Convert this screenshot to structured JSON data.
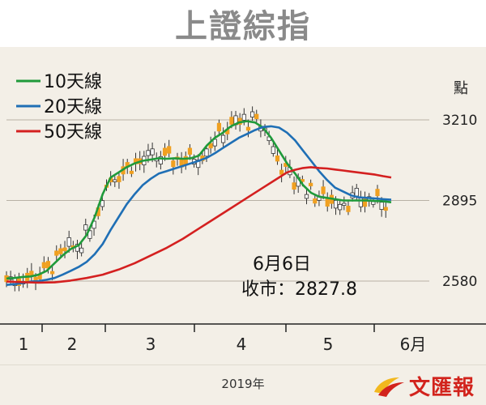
{
  "title": "上證綜指",
  "footer": {
    "year_label": "2019年",
    "brand": "文匯報"
  },
  "colors": {
    "ma10": "#1f9a3a",
    "ma20": "#1f6fb5",
    "ma50": "#d42020",
    "candle_up": "#ffffff",
    "candle_down": "#f0a020",
    "background": "#f3efe7"
  },
  "annotation": {
    "date": "6月6日",
    "close": "收市：2827.8"
  },
  "chart_data": {
    "type": "line",
    "unit_label": "點",
    "ylim": [
      2440,
      3320
    ],
    "y_ticks": [
      {
        "value": 3210,
        "label": "3210"
      },
      {
        "value": 2895,
        "label": "2895"
      },
      {
        "value": 2580,
        "label": "2580"
      }
    ],
    "x_ticks": [
      "1",
      "2",
      "3",
      "4",
      "5",
      "6月"
    ],
    "legend": [
      "10天線",
      "20天線",
      "50天線"
    ],
    "series": [
      {
        "name": "10天線",
        "points": [
          [
            0,
            2590
          ],
          [
            10,
            2592
          ],
          [
            20,
            2596
          ],
          [
            30,
            2598
          ],
          [
            40,
            2605
          ],
          [
            50,
            2620
          ],
          [
            60,
            2650
          ],
          [
            70,
            2680
          ],
          [
            80,
            2705
          ],
          [
            90,
            2720
          ],
          [
            100,
            2760
          ],
          [
            110,
            2830
          ],
          [
            120,
            2920
          ],
          [
            130,
            2985
          ],
          [
            140,
            3005
          ],
          [
            150,
            3025
          ],
          [
            160,
            3040
          ],
          [
            170,
            3050
          ],
          [
            180,
            3055
          ],
          [
            190,
            3060
          ],
          [
            200,
            3058
          ],
          [
            210,
            3060
          ],
          [
            220,
            3058
          ],
          [
            230,
            3060
          ],
          [
            240,
            3070
          ],
          [
            250,
            3110
          ],
          [
            260,
            3140
          ],
          [
            270,
            3160
          ],
          [
            280,
            3185
          ],
          [
            290,
            3200
          ],
          [
            300,
            3205
          ],
          [
            310,
            3200
          ],
          [
            320,
            3180
          ],
          [
            330,
            3140
          ],
          [
            340,
            3090
          ],
          [
            350,
            3040
          ],
          [
            360,
            3000
          ],
          [
            370,
            2955
          ],
          [
            380,
            2925
          ],
          [
            390,
            2910
          ],
          [
            400,
            2905
          ],
          [
            410,
            2900
          ],
          [
            420,
            2895
          ],
          [
            430,
            2895
          ],
          [
            440,
            2895
          ],
          [
            450,
            2895
          ],
          [
            460,
            2893
          ],
          [
            470,
            2892
          ],
          [
            480,
            2888
          ]
        ]
      },
      {
        "name": "20天線",
        "points": [
          [
            0,
            2565
          ],
          [
            10,
            2568
          ],
          [
            20,
            2572
          ],
          [
            30,
            2578
          ],
          [
            40,
            2580
          ],
          [
            50,
            2585
          ],
          [
            60,
            2592
          ],
          [
            70,
            2605
          ],
          [
            80,
            2620
          ],
          [
            90,
            2635
          ],
          [
            100,
            2655
          ],
          [
            110,
            2685
          ],
          [
            120,
            2725
          ],
          [
            130,
            2780
          ],
          [
            140,
            2830
          ],
          [
            150,
            2880
          ],
          [
            160,
            2920
          ],
          [
            170,
            2955
          ],
          [
            180,
            2980
          ],
          [
            190,
            3000
          ],
          [
            200,
            3010
          ],
          [
            210,
            3020
          ],
          [
            220,
            3030
          ],
          [
            230,
            3040
          ],
          [
            240,
            3050
          ],
          [
            250,
            3062
          ],
          [
            260,
            3080
          ],
          [
            270,
            3100
          ],
          [
            280,
            3120
          ],
          [
            290,
            3140
          ],
          [
            300,
            3155
          ],
          [
            310,
            3170
          ],
          [
            320,
            3182
          ],
          [
            330,
            3185
          ],
          [
            340,
            3180
          ],
          [
            350,
            3160
          ],
          [
            360,
            3130
          ],
          [
            370,
            3090
          ],
          [
            380,
            3050
          ],
          [
            390,
            3010
          ],
          [
            400,
            2975
          ],
          [
            410,
            2945
          ],
          [
            420,
            2930
          ],
          [
            430,
            2915
          ],
          [
            440,
            2907
          ],
          [
            450,
            2905
          ],
          [
            460,
            2903
          ],
          [
            470,
            2900
          ],
          [
            480,
            2898
          ]
        ]
      },
      {
        "name": "50天線",
        "points": [
          [
            0,
            2578
          ],
          [
            20,
            2576
          ],
          [
            40,
            2574
          ],
          [
            60,
            2575
          ],
          [
            80,
            2582
          ],
          [
            100,
            2592
          ],
          [
            120,
            2605
          ],
          [
            140,
            2625
          ],
          [
            160,
            2650
          ],
          [
            180,
            2680
          ],
          [
            200,
            2710
          ],
          [
            220,
            2745
          ],
          [
            240,
            2785
          ],
          [
            260,
            2825
          ],
          [
            280,
            2865
          ],
          [
            300,
            2905
          ],
          [
            320,
            2945
          ],
          [
            340,
            2985
          ],
          [
            350,
            3005
          ],
          [
            360,
            3015
          ],
          [
            370,
            3022
          ],
          [
            380,
            3025
          ],
          [
            390,
            3022
          ],
          [
            400,
            3020
          ],
          [
            410,
            3016
          ],
          [
            420,
            3012
          ],
          [
            430,
            3008
          ],
          [
            440,
            3004
          ],
          [
            450,
            3000
          ],
          [
            460,
            2996
          ],
          [
            470,
            2990
          ],
          [
            480,
            2985
          ]
        ]
      }
    ]
  }
}
